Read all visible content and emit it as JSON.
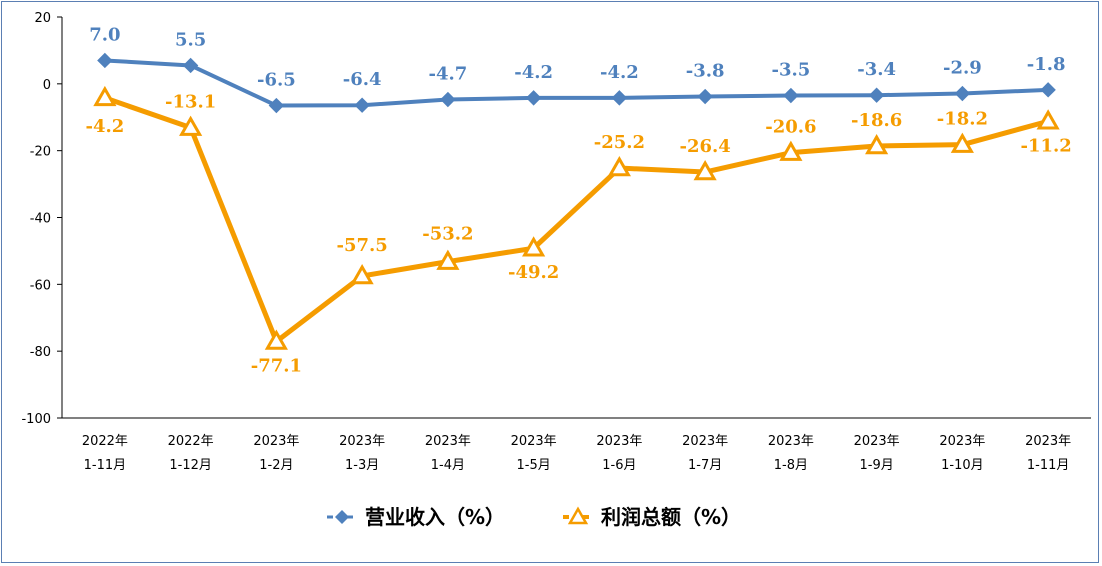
{
  "chart_data": {
    "type": "line",
    "categories": [
      [
        "2022年",
        "1-11月"
      ],
      [
        "2022年",
        "1-12月"
      ],
      [
        "2023年",
        "1-2月"
      ],
      [
        "2023年",
        "1-3月"
      ],
      [
        "2023年",
        "1-4月"
      ],
      [
        "2023年",
        "1-5月"
      ],
      [
        "2023年",
        "1-6月"
      ],
      [
        "2023年",
        "1-7月"
      ],
      [
        "2023年",
        "1-8月"
      ],
      [
        "2023年",
        "1-9月"
      ],
      [
        "2023年",
        "1-10月"
      ],
      [
        "2023年",
        "1-11月"
      ]
    ],
    "series": [
      {
        "name": "营业收入（%）",
        "color": "#4f81bd",
        "marker": "diamond",
        "values": [
          7.0,
          5.5,
          -6.5,
          -6.4,
          -4.7,
          -4.2,
          -4.2,
          -3.8,
          -3.5,
          -3.4,
          -2.9,
          -1.8
        ],
        "labels": [
          "7.0",
          "5.5",
          "-6.5",
          "-6.4",
          "-4.7",
          "-4.2",
          "-4.2",
          "-3.8",
          "-3.5",
          "-3.4",
          "-2.9",
          "-1.8"
        ]
      },
      {
        "name": "利润总额（%）",
        "color": "#f59c00",
        "marker": "triangle",
        "values": [
          -4.2,
          -13.1,
          -77.1,
          -57.5,
          -53.2,
          -49.2,
          -25.2,
          -26.4,
          -20.6,
          -18.6,
          -18.2,
          -11.2
        ],
        "labels": [
          "-4.2",
          "-13.1",
          "-77.1",
          "-57.5",
          "-53.2",
          "-49.2",
          "-25.2",
          "-26.4",
          "-20.6",
          "-18.6",
          "-18.2",
          "-11.2"
        ]
      }
    ],
    "ylim": [
      -100,
      20
    ],
    "yticks": [
      "20",
      "0",
      "-20",
      "-40",
      "-60",
      "-80",
      "-100"
    ],
    "ytick_values": [
      20,
      0,
      -20,
      -40,
      -60,
      -80,
      -100
    ],
    "grid": false,
    "legend_position": "bottom"
  }
}
